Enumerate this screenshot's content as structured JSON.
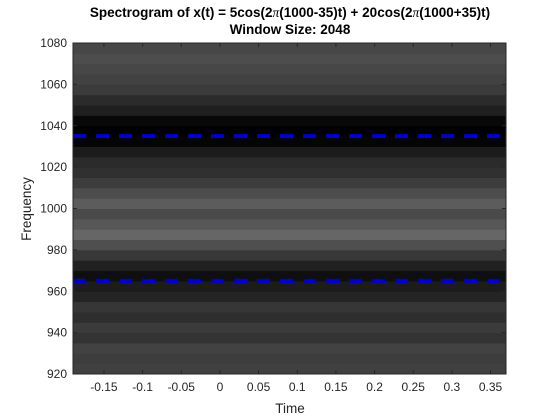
{
  "chart_data": {
    "type": "heatmap",
    "title_line1_prefix": "Spectrogram of x(t) = 5cos(2",
    "title_line1_middle": "(1000-35)t) + 20cos(2",
    "title_line1_suffix": "(1000+35)t)",
    "title_pi_symbol": "π",
    "title_line2": "Window Size: 2048",
    "xlabel": "Time",
    "ylabel": "Frequency",
    "xlim": [
      -0.19,
      0.37
    ],
    "ylim": [
      920,
      1080
    ],
    "xticks": [
      -0.15,
      -0.1,
      -0.05,
      0,
      0.05,
      0.1,
      0.15,
      0.2,
      0.25,
      0.3,
      0.35
    ],
    "xtick_labels": [
      "-0.15",
      "-0.1",
      "-0.05",
      "0",
      "0.05",
      "0.1",
      "0.15",
      "0.2",
      "0.25",
      "0.3",
      "0.35"
    ],
    "yticks": [
      920,
      940,
      960,
      980,
      1000,
      1020,
      1040,
      1060,
      1080
    ],
    "ytick_labels": [
      "920",
      "940",
      "960",
      "980",
      "1000",
      "1020",
      "1040",
      "1060",
      "1080"
    ],
    "colormap": "gray",
    "frequency_bins": [
      {
        "f": 920,
        "gray": 0.25
      },
      {
        "f": 925,
        "gray": 0.24
      },
      {
        "f": 930,
        "gray": 0.26
      },
      {
        "f": 935,
        "gray": 0.2
      },
      {
        "f": 940,
        "gray": 0.23
      },
      {
        "f": 945,
        "gray": 0.18
      },
      {
        "f": 950,
        "gray": 0.21
      },
      {
        "f": 955,
        "gray": 0.14
      },
      {
        "f": 960,
        "gray": 0.11
      },
      {
        "f": 965,
        "gray": 0.06
      },
      {
        "f": 970,
        "gray": 0.13
      },
      {
        "f": 975,
        "gray": 0.22
      },
      {
        "f": 980,
        "gray": 0.31
      },
      {
        "f": 985,
        "gray": 0.4
      },
      {
        "f": 990,
        "gray": 0.34
      },
      {
        "f": 995,
        "gray": 0.29
      },
      {
        "f": 1000,
        "gray": 0.36
      },
      {
        "f": 1005,
        "gray": 0.3
      },
      {
        "f": 1010,
        "gray": 0.24
      },
      {
        "f": 1015,
        "gray": 0.19
      },
      {
        "f": 1020,
        "gray": 0.17
      },
      {
        "f": 1025,
        "gray": 0.11
      },
      {
        "f": 1030,
        "gray": 0.02
      },
      {
        "f": 1035,
        "gray": 0.0
      },
      {
        "f": 1040,
        "gray": 0.03
      },
      {
        "f": 1045,
        "gray": 0.12
      },
      {
        "f": 1050,
        "gray": 0.17
      },
      {
        "f": 1055,
        "gray": 0.23
      },
      {
        "f": 1060,
        "gray": 0.26
      },
      {
        "f": 1065,
        "gray": 0.28
      },
      {
        "f": 1070,
        "gray": 0.3
      },
      {
        "f": 1075,
        "gray": 0.28
      }
    ],
    "series": [
      {
        "y": 1035,
        "line_style": "dashed",
        "color": "#0000cc"
      },
      {
        "y": 965,
        "line_style": "dashed",
        "color": "#0000cc"
      }
    ]
  }
}
